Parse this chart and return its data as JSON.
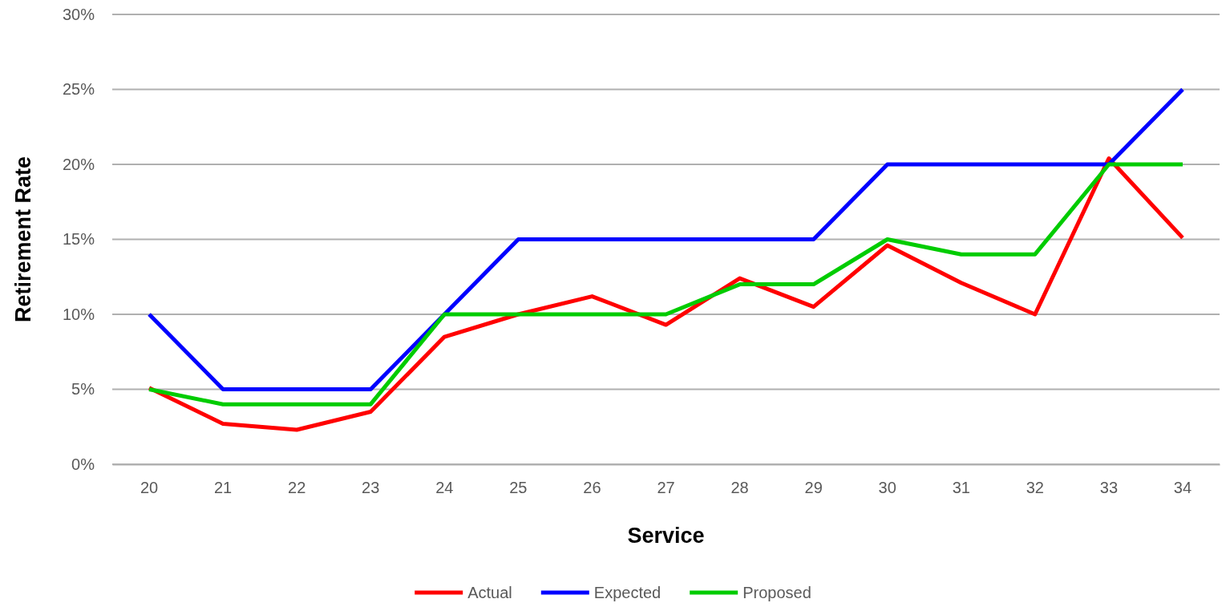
{
  "chart_data": {
    "type": "line",
    "xlabel": "Service",
    "ylabel": "Retirement Rate",
    "categories": [
      "20",
      "21",
      "22",
      "23",
      "24",
      "25",
      "26",
      "27",
      "28",
      "29",
      "30",
      "31",
      "32",
      "33",
      "34"
    ],
    "series": [
      {
        "name": "Actual",
        "color": "#ff0000",
        "values": [
          5.1,
          2.7,
          2.3,
          3.5,
          8.5,
          10,
          11.2,
          9.3,
          12.4,
          10.5,
          14.6,
          12.1,
          10,
          20.4,
          15.1
        ]
      },
      {
        "name": "Expected",
        "color": "#0000ff",
        "values": [
          10,
          5,
          5,
          5,
          10,
          15,
          15,
          15,
          15,
          15,
          20,
          20,
          20,
          20,
          25
        ]
      },
      {
        "name": "Proposed",
        "color": "#00cc00",
        "values": [
          5,
          4,
          4,
          4,
          10,
          10,
          10,
          10,
          12,
          12,
          15,
          14,
          14,
          20,
          20
        ]
      }
    ],
    "ylim": [
      0,
      30
    ],
    "yticks": [
      {
        "value": 0,
        "label": "0%"
      },
      {
        "value": 5,
        "label": "5%"
      },
      {
        "value": 10,
        "label": "10%"
      },
      {
        "value": 15,
        "label": "15%"
      },
      {
        "value": 20,
        "label": "20%"
      },
      {
        "value": 25,
        "label": "25%"
      },
      {
        "value": 30,
        "label": "30%"
      }
    ],
    "grid": "y",
    "legend": "bottom",
    "marker": "none",
    "line_style": "solid"
  }
}
